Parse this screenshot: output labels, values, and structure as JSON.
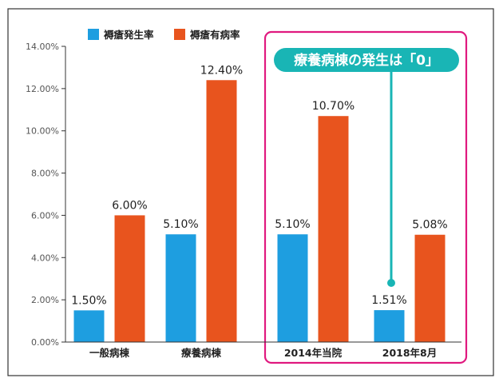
{
  "colors": {
    "series1": "#1e9ee0",
    "series2": "#e8541e",
    "highlight_border": "#e0197f",
    "callout_bg": "#19b5b5"
  },
  "legend": {
    "item1": "褥瘡発生率",
    "item2": "褥瘡有病率"
  },
  "callout": {
    "text": "療養病棟の発生は「0」"
  },
  "chart_data": {
    "type": "bar",
    "categories": [
      "一般病棟",
      "療養病棟",
      "2014年当院",
      "2018年8月"
    ],
    "series": [
      {
        "name": "褥瘡発生率",
        "values": [
          1.5,
          5.1,
          5.1,
          1.51
        ],
        "labels": [
          "1.50%",
          "5.10%",
          "5.10%",
          "1.51%"
        ]
      },
      {
        "name": "褥瘡有病率",
        "values": [
          6.0,
          12.4,
          10.7,
          5.08
        ],
        "labels": [
          "6.00%",
          "12.40%",
          "10.70%",
          "5.08%"
        ]
      }
    ],
    "yticks": [
      "0.00%",
      "2.00%",
      "4.00%",
      "6.00%",
      "8.00%",
      "10.00%",
      "12.00%",
      "14.00%"
    ],
    "ylim": [
      0,
      14
    ],
    "grid": false,
    "legend_position": "top-left"
  }
}
